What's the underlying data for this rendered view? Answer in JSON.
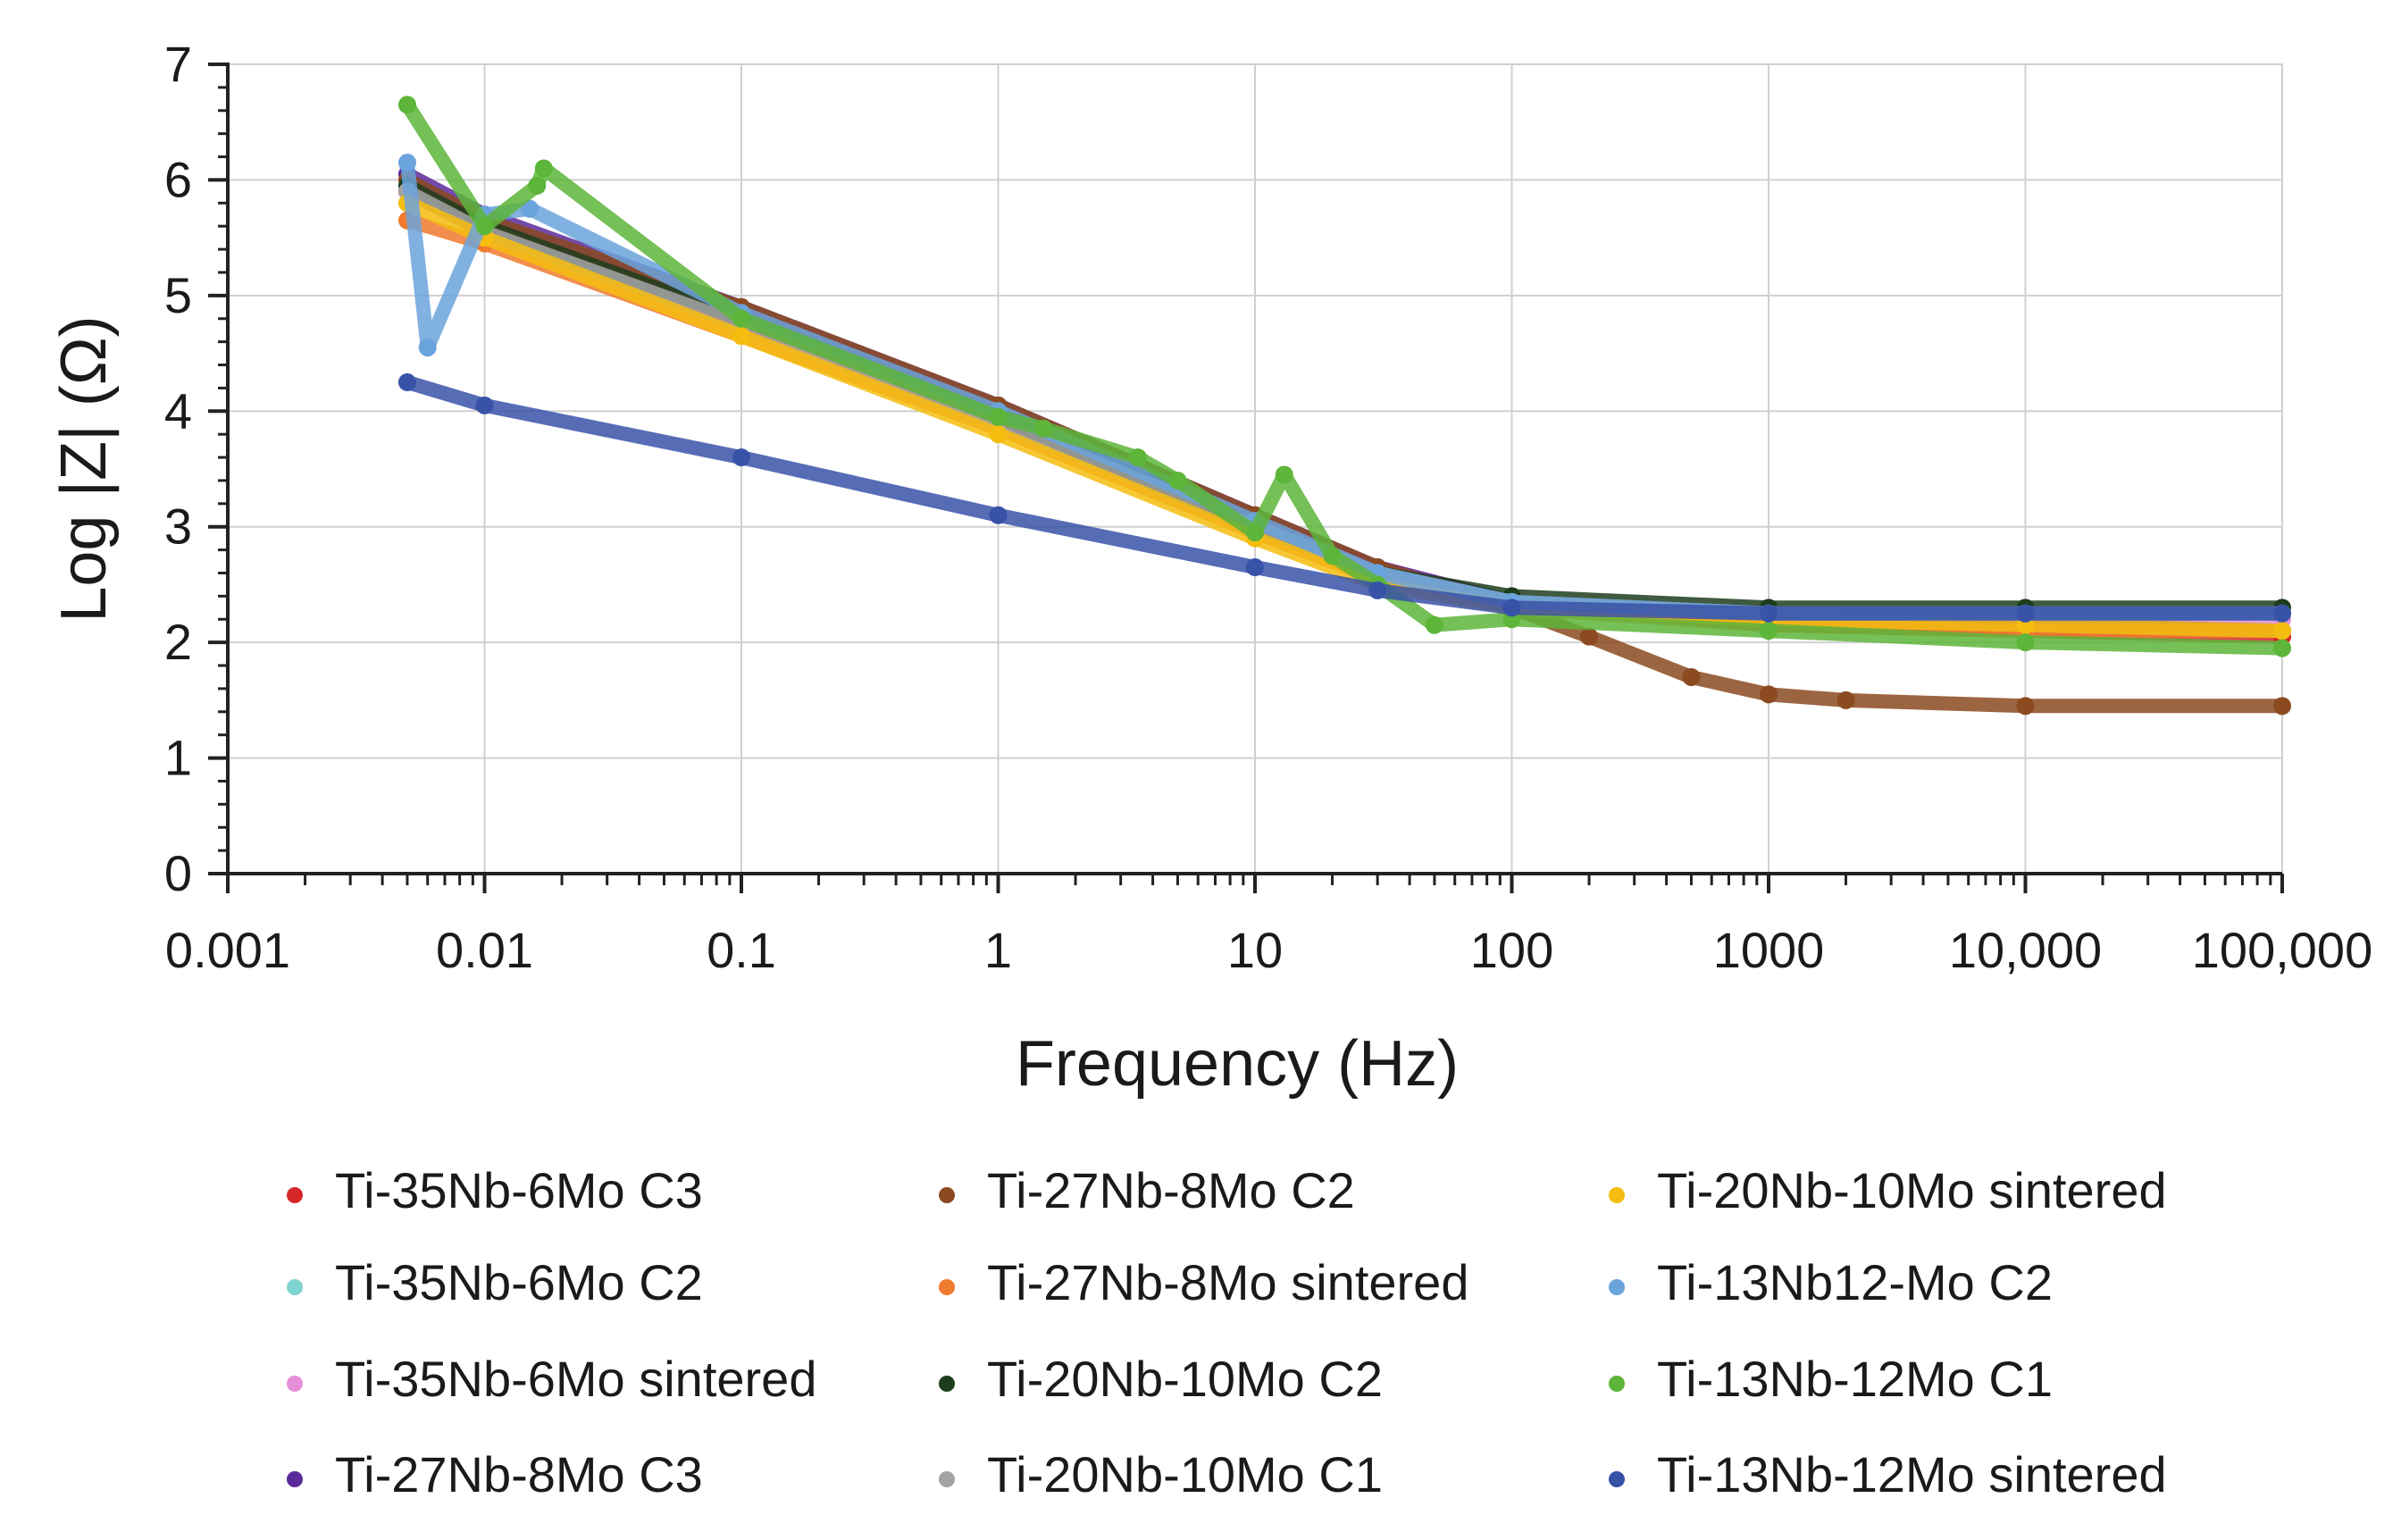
{
  "chart_data": {
    "type": "scatter",
    "title": "",
    "xlabel": "Frequency (Hz)",
    "ylabel": "Log |Z| (Ω)",
    "xscale": "log",
    "xlim": [
      0.001,
      100000
    ],
    "ylim": [
      0,
      7
    ],
    "grid": true,
    "legend_position": "bottom",
    "x_ticks": [
      0.001,
      0.01,
      0.1,
      1,
      10,
      100,
      1000,
      10000,
      100000
    ],
    "x_tick_labels": [
      "0.001",
      "0.01",
      "0.1",
      "1",
      "10",
      "100",
      "1000",
      "10,000",
      "100,000"
    ],
    "y_ticks": [
      0,
      1,
      2,
      3,
      4,
      5,
      6,
      7
    ],
    "y_tick_labels": [
      "0",
      "1",
      "2",
      "3",
      "4",
      "5",
      "6",
      "7"
    ],
    "series": [
      {
        "name": "Ti-35Nb-6Mo C3",
        "color": "#d62728",
        "x": [
          0.005,
          0.01,
          0.1,
          1,
          10,
          30,
          100,
          1000,
          10000,
          100000
        ],
        "y": [
          5.9,
          5.55,
          4.75,
          3.95,
          3.0,
          2.6,
          2.35,
          2.15,
          2.1,
          2.05
        ]
      },
      {
        "name": "Ti-35Nb-6Mo C2",
        "color": "#7fd3d0",
        "x": [
          0.005,
          0.01,
          0.1,
          1,
          10,
          30,
          100,
          1000,
          10000,
          100000
        ],
        "y": [
          5.95,
          5.6,
          4.8,
          3.95,
          3.05,
          2.6,
          2.35,
          2.2,
          2.15,
          2.1
        ]
      },
      {
        "name": "Ti-35Nb-6Mo sintered",
        "color": "#e68fd8",
        "x": [
          0.005,
          0.01,
          0.1,
          1,
          10,
          30,
          100,
          1000,
          10000,
          100000
        ],
        "y": [
          6.0,
          5.65,
          4.85,
          4.0,
          3.05,
          2.65,
          2.35,
          2.25,
          2.2,
          2.2
        ]
      },
      {
        "name": "Ti-27Nb-8Mo C3",
        "color": "#5b2a9a",
        "x": [
          0.005,
          0.01,
          0.1,
          1,
          10,
          30,
          100,
          1000,
          10000,
          100000
        ],
        "y": [
          6.05,
          5.7,
          4.9,
          4.05,
          3.1,
          2.65,
          2.35,
          2.2,
          2.15,
          2.1
        ]
      },
      {
        "name": "Ti-27Nb-8Mo C2",
        "color": "#8b4a20",
        "x": [
          0.005,
          0.01,
          0.1,
          1,
          10,
          30,
          100,
          200,
          500,
          1000,
          2000,
          10000,
          100000
        ],
        "y": [
          6.0,
          5.65,
          4.9,
          4.05,
          3.1,
          2.65,
          2.3,
          2.05,
          1.7,
          1.55,
          1.5,
          1.45,
          1.45
        ]
      },
      {
        "name": "Ti-27Nb-8Mo sintered",
        "color": "#f07a2e",
        "x": [
          0.005,
          0.01,
          0.1,
          1,
          10,
          30,
          100,
          1000,
          10000,
          100000
        ],
        "y": [
          5.65,
          5.45,
          4.65,
          3.85,
          2.95,
          2.55,
          2.3,
          2.15,
          2.1,
          2.1
        ]
      },
      {
        "name": "Ti-20Nb-10Mo C2",
        "color": "#1d3d1d",
        "x": [
          0.005,
          0.01,
          0.1,
          1,
          10,
          30,
          100,
          1000,
          10000,
          100000
        ],
        "y": [
          5.95,
          5.6,
          4.8,
          3.95,
          3.0,
          2.6,
          2.4,
          2.3,
          2.3,
          2.3
        ]
      },
      {
        "name": "Ti-20Nb-10Mo C1",
        "color": "#a3a3a3",
        "x": [
          0.005,
          0.01,
          0.1,
          1,
          10,
          30,
          100,
          1000,
          10000,
          100000
        ],
        "y": [
          5.9,
          5.55,
          4.75,
          3.9,
          3.0,
          2.6,
          2.35,
          2.25,
          2.25,
          2.25
        ]
      },
      {
        "name": "Ti-20Nb-10Mo sintered",
        "color": "#f5bd0f",
        "x": [
          0.005,
          0.01,
          0.1,
          1,
          10,
          30,
          100,
          1000,
          10000,
          100000
        ],
        "y": [
          5.8,
          5.5,
          4.65,
          3.8,
          2.9,
          2.5,
          2.3,
          2.2,
          2.15,
          2.1
        ]
      },
      {
        "name": "Ti-13Nb12-Mo C2",
        "color": "#6ba3dc",
        "x": [
          0.005,
          0.006,
          0.01,
          0.015,
          0.1,
          1,
          10,
          30,
          100,
          1000,
          10000,
          100000
        ],
        "y": [
          6.15,
          4.55,
          5.7,
          5.75,
          4.85,
          4.0,
          3.05,
          2.6,
          2.35,
          2.25,
          2.25,
          2.25
        ]
      },
      {
        "name": "Ti-13Nb-12Mo C1",
        "color": "#5db53a",
        "x": [
          0.005,
          0.01,
          0.016,
          0.017,
          0.1,
          1,
          1.5,
          3.5,
          5,
          10,
          13,
          20,
          30,
          50,
          100,
          1000,
          10000,
          100000
        ],
        "y": [
          6.65,
          5.6,
          5.95,
          6.1,
          4.8,
          3.95,
          3.85,
          3.6,
          3.4,
          2.95,
          3.45,
          2.75,
          2.5,
          2.15,
          2.2,
          2.1,
          2.0,
          1.95
        ]
      },
      {
        "name": "Ti-13Nb-12Mo sintered",
        "color": "#3852a8",
        "x": [
          0.005,
          0.01,
          0.1,
          1,
          10,
          30,
          100,
          1000,
          10000,
          100000
        ],
        "y": [
          4.25,
          4.05,
          3.6,
          3.1,
          2.65,
          2.45,
          2.3,
          2.25,
          2.25,
          2.25
        ]
      }
    ]
  }
}
